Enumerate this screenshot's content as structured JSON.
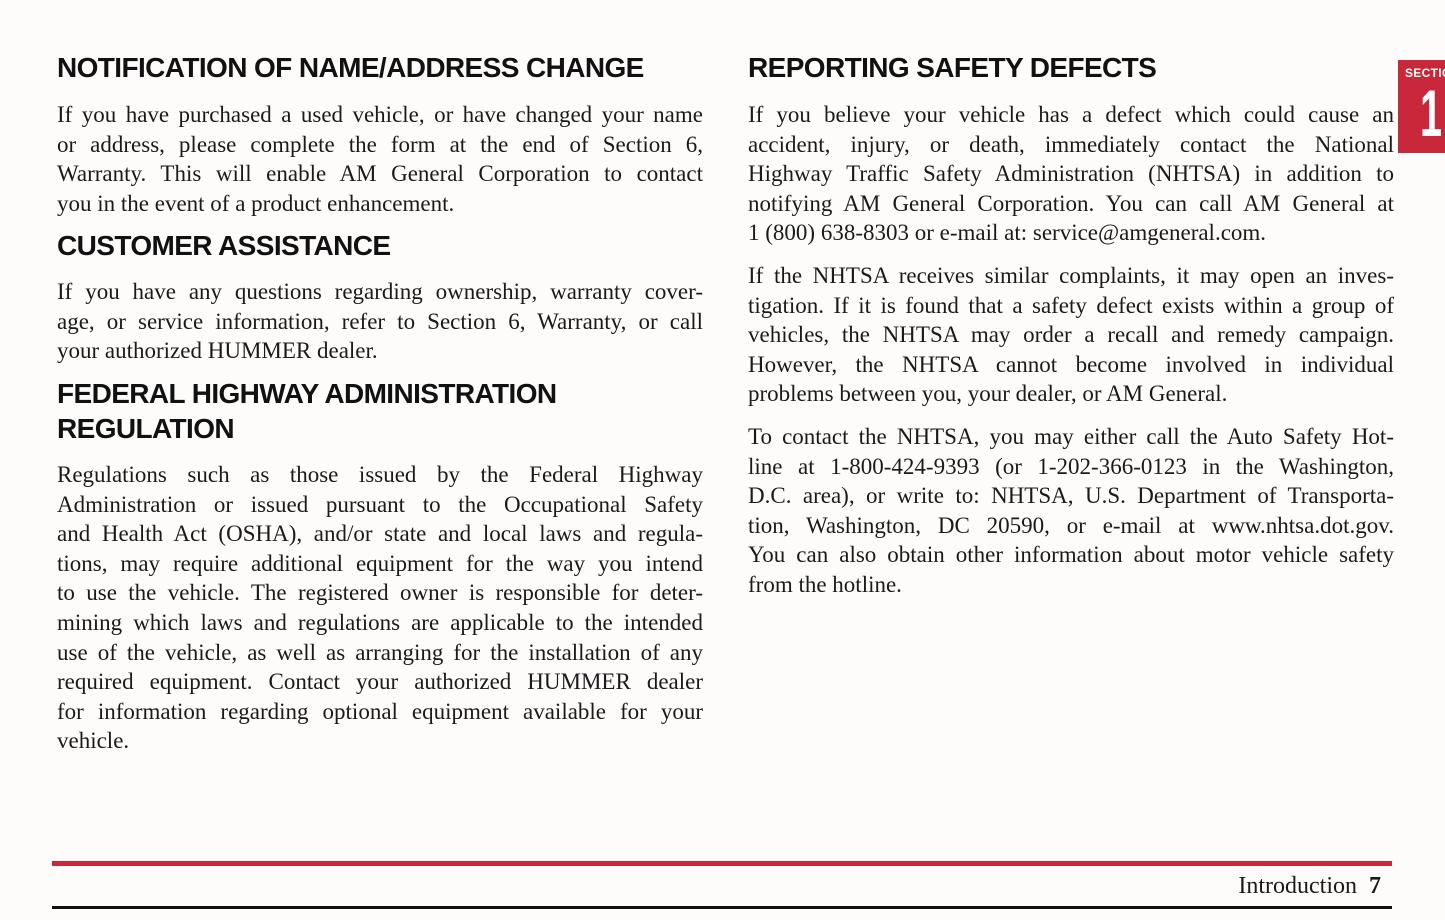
{
  "left": [
    {
      "heading": [
        "NOTIFICATION OF NAME/ADDRESS CHANGE"
      ],
      "lines": [
        "If you have purchased a used vehicle, or have changed your name",
        "or address, please complete the form at the end of Section 6,",
        "Warranty. This will enable AM General Corporation to contact",
        "you in the event of a product enhancement."
      ]
    },
    {
      "heading": [
        "CUSTOMER ASSISTANCE"
      ],
      "lines": [
        "If you have any questions regarding ownership, warranty cover-",
        "age, or service information, refer to Section 6, Warranty, or call",
        "your authorized HUMMER dealer."
      ]
    },
    {
      "heading": [
        "FEDERAL HIGHWAY ADMINISTRATION",
        "REGULATION"
      ],
      "lines": [
        "Regulations such as those issued by the Federal Highway",
        "Administration or issued pursuant to the Occupational Safety",
        "and Health Act (OSHA), and/or state and local laws and regula-",
        "tions, may require additional equipment for the way you intend",
        "to use the vehicle. The registered owner is responsible for deter-",
        "mining which laws and regulations are applicable to the intended",
        "use of the vehicle, as well as arranging for the installation of any",
        "required equipment. Contact your authorized HUMMER dealer",
        "for information regarding optional equipment available for your",
        "vehicle."
      ]
    }
  ],
  "right": {
    "heading": "REPORTING SAFETY DEFECTS",
    "paragraphs": [
      [
        "If you believe your vehicle has a defect which could cause an",
        "accident, injury, or death, immediately contact the National",
        "Highway Traffic Safety Administration (NHTSA) in addition to",
        "notifying AM General Corporation. You can call AM General at",
        "1 (800) 638-8303 or e-mail at: service@amgeneral.com."
      ],
      [
        "If the NHTSA receives similar complaints, it may open an inves-",
        "tigation. If it is found that a safety defect exists within a group of",
        "vehicles, the NHTSA may order a recall and remedy campaign.",
        "However, the NHTSA cannot become involved in individual",
        "problems between you, your dealer, or AM General."
      ],
      [
        "To contact the NHTSA, you may either call the Auto Safety Hot-",
        "line at 1-800-424-9393 (or 1-202-366-0123 in the Washington,",
        "D.C. area), or write to: NHTSA, U.S. Department of Transporta-",
        "tion, Washington, DC 20590, or e-mail at www.nhtsa.dot.gov.",
        "You can also obtain other information about motor vehicle safety",
        "from the hotline."
      ]
    ]
  },
  "tab": {
    "label": "SECTIO",
    "number": "1",
    "color": "#c8283a"
  },
  "footer": {
    "section": "Introduction",
    "page": "7"
  }
}
